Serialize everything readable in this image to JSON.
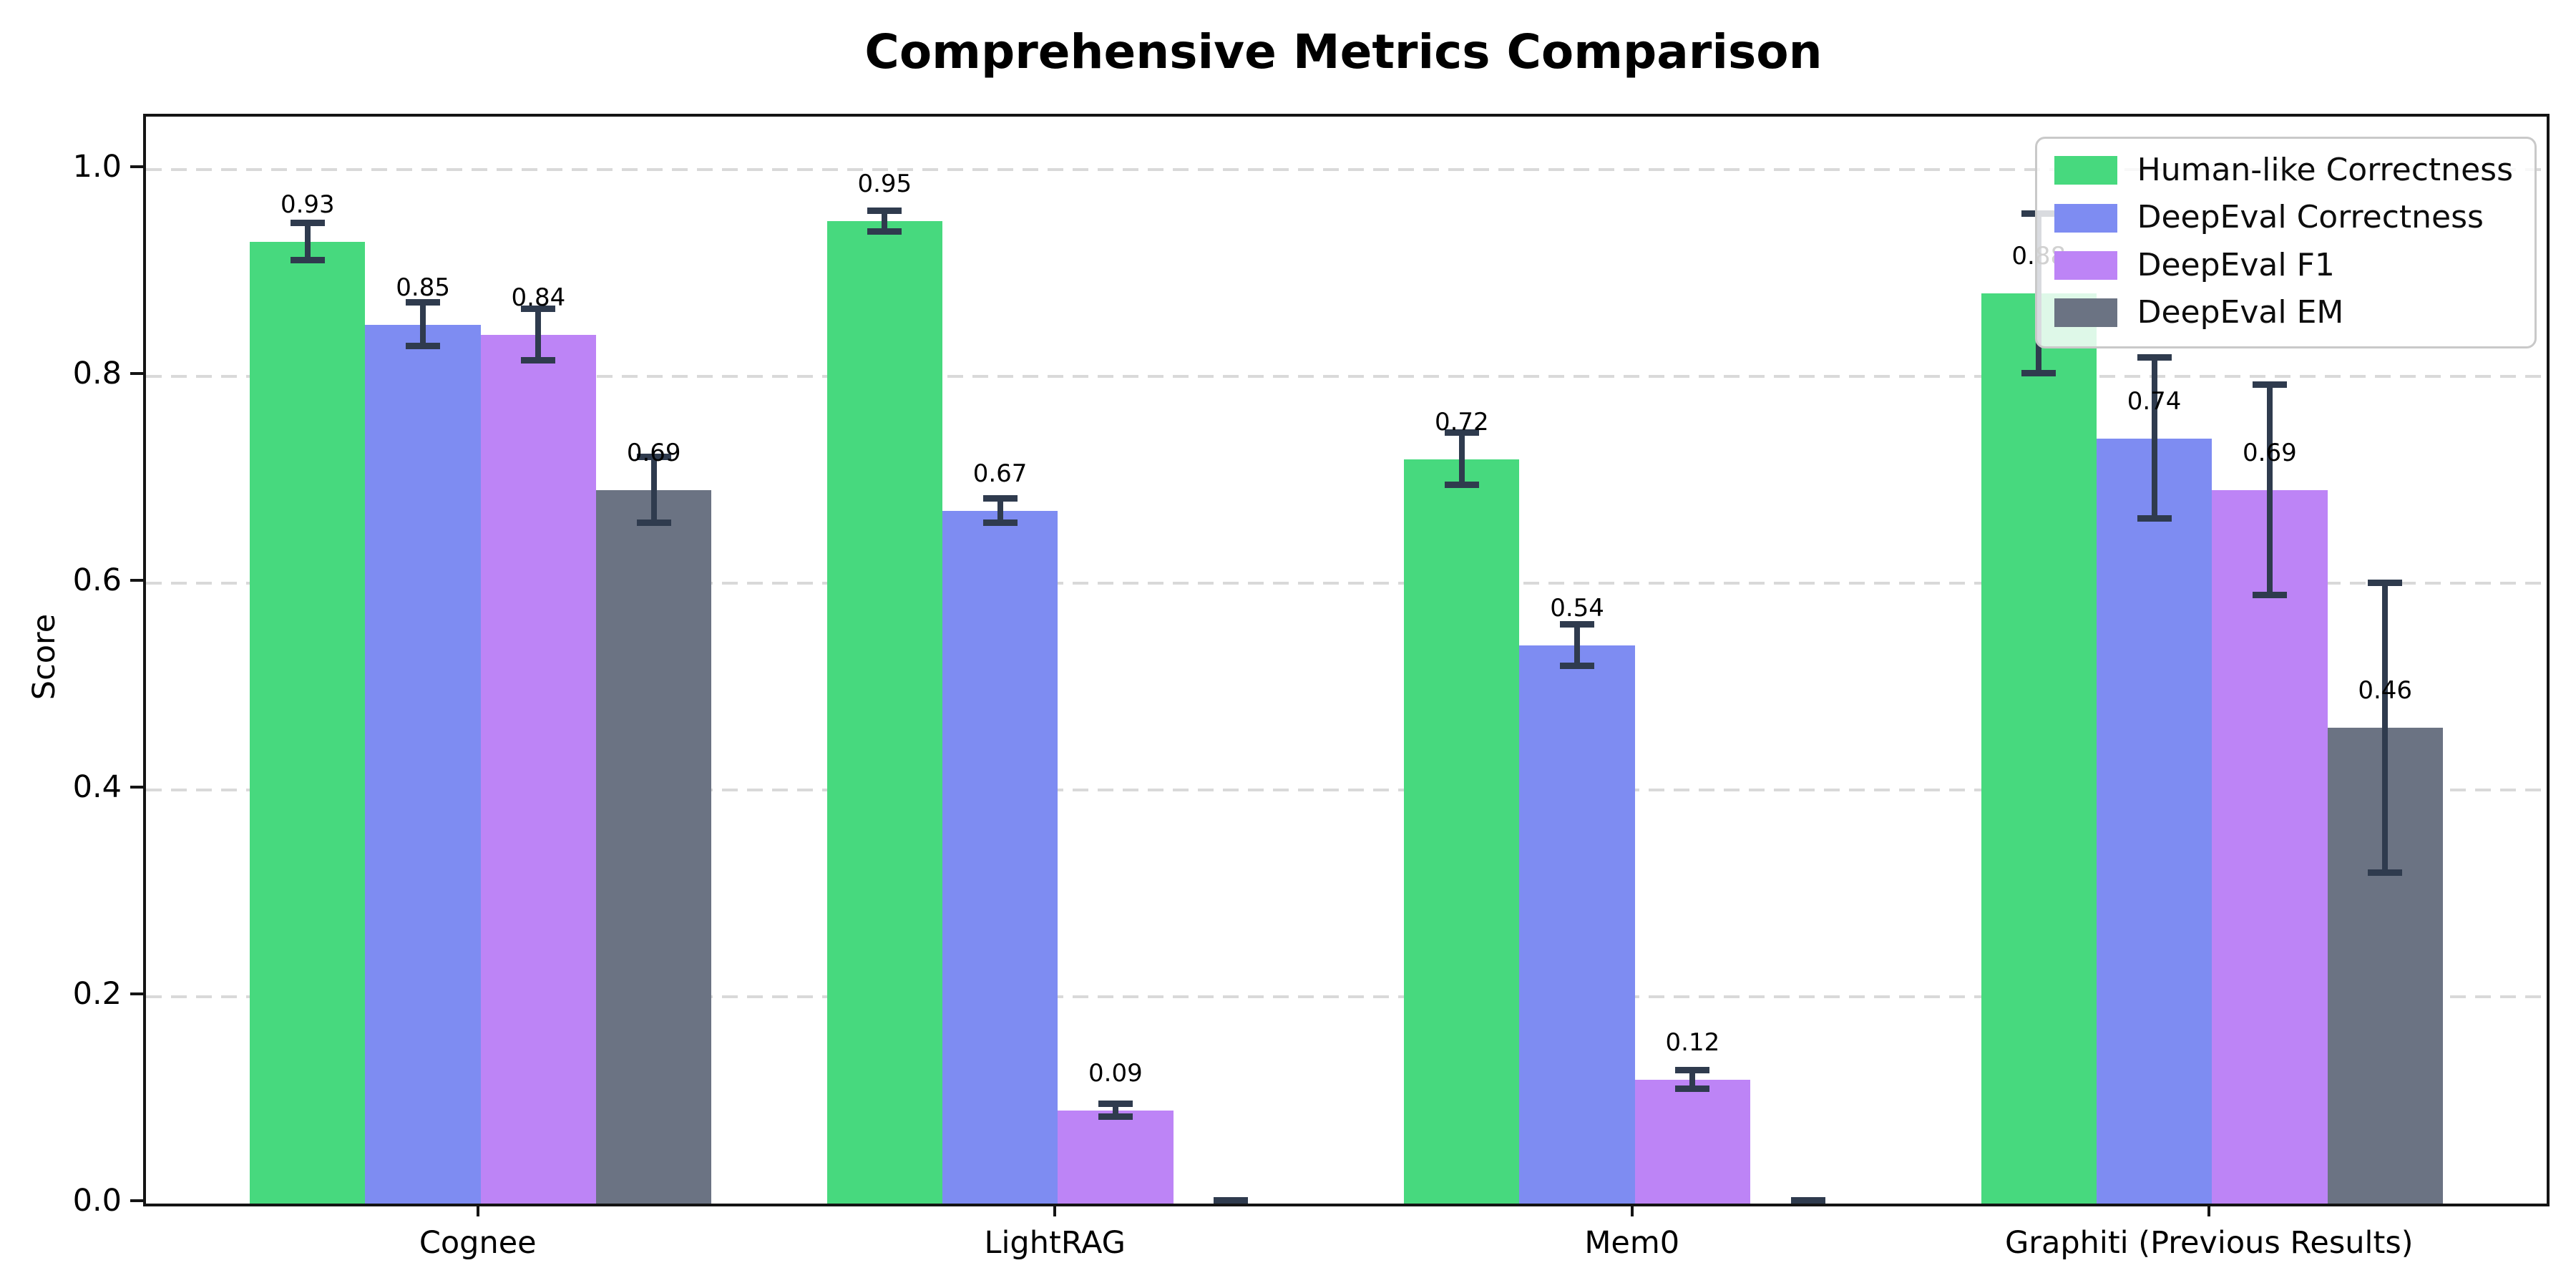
{
  "chart_data": {
    "type": "bar",
    "title": "Comprehensive Metrics Comparison",
    "ylabel": "Score",
    "xlabel": "",
    "categories": [
      "Cognee",
      "LightRAG",
      "Mem0",
      "Graphiti (Previous Results)"
    ],
    "series": [
      {
        "name": "Human-like Correctness",
        "color": "#47d97e",
        "values": [
          0.93,
          0.95,
          0.72,
          0.88
        ],
        "errors": [
          0.018,
          0.01,
          0.025,
          0.077
        ],
        "labels": [
          "0.93",
          "0.95",
          "0.72",
          "0.88"
        ]
      },
      {
        "name": "DeepEval Correctness",
        "color": "#7e8cf2",
        "values": [
          0.85,
          0.67,
          0.54,
          0.74
        ],
        "errors": [
          0.021,
          0.012,
          0.02,
          0.078
        ],
        "labels": [
          "0.85",
          "0.67",
          "0.54",
          "0.74"
        ]
      },
      {
        "name": "DeepEval F1",
        "color": "#bd84f6",
        "values": [
          0.84,
          0.09,
          0.12,
          0.69
        ],
        "errors": [
          0.025,
          0.006,
          0.009,
          0.102
        ],
        "labels": [
          "0.84",
          "0.09",
          "0.12",
          "0.69"
        ]
      },
      {
        "name": "DeepEval EM",
        "color": "#6b7383",
        "values": [
          0.69,
          0.0,
          0.0,
          0.46
        ],
        "errors": [
          0.032,
          0.003,
          0.003,
          0.14
        ],
        "labels": [
          "0.69",
          "",
          "",
          "0.46"
        ]
      }
    ],
    "y_ticks": [
      "0.0",
      "0.2",
      "0.4",
      "0.6",
      "0.8",
      "1.0"
    ],
    "ylim": [
      0.0,
      1.051
    ],
    "grid": "horizontal-dashed",
    "legend_position": "upper right",
    "errorbar_color": "#2f3b4e",
    "grid_color": "#d9d9d9",
    "axis_color": "#141414"
  }
}
